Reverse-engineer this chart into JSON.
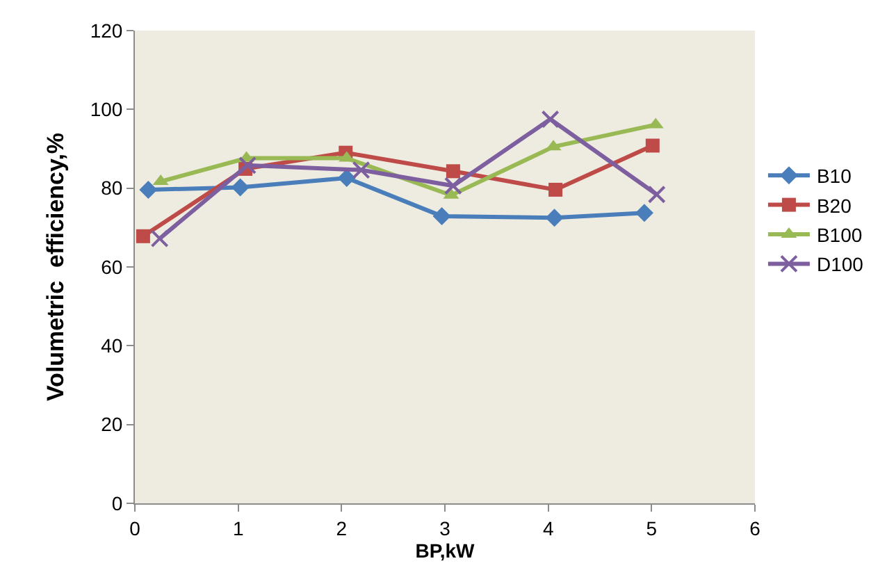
{
  "chart_data": {
    "type": "line",
    "xlabel": "BP,kW",
    "ylabel": "Volumetric  efficiency,%",
    "xlim": [
      0,
      6
    ],
    "xticks": [
      0,
      1,
      2,
      3,
      4,
      5,
      6
    ],
    "ylim": [
      0,
      120
    ],
    "yticks": [
      0,
      20,
      40,
      60,
      80,
      100,
      120
    ],
    "grid": false,
    "legend": "right",
    "line_style": "solid",
    "series": [
      {
        "name": "B10",
        "color": "#4a7ebb",
        "marker": "diamond",
        "x": [
          0.13,
          1.02,
          2.05,
          2.97,
          4.06,
          4.93
        ],
        "values": [
          79.6,
          80.2,
          82.6,
          72.9,
          72.5,
          73.7
        ]
      },
      {
        "name": "B20",
        "color": "#be4b48",
        "marker": "square",
        "x": [
          0.08,
          1.07,
          2.04,
          3.08,
          4.07,
          5.01
        ],
        "values": [
          67.8,
          84.9,
          89,
          84.3,
          79.6,
          90.8
        ]
      },
      {
        "name": "B100",
        "color": "#98b954",
        "marker": "triangle",
        "x": [
          0.25,
          1.08,
          2.05,
          3.06,
          4.05,
          5.04
        ],
        "values": [
          81.7,
          87.6,
          87.6,
          78.2,
          90.5,
          96.1
        ]
      },
      {
        "name": "D100",
        "color": "#7d5fa0",
        "marker": "cross",
        "x": [
          0.24,
          1.09,
          2.19,
          3.08,
          4.02,
          5.05
        ],
        "values": [
          67.2,
          85.8,
          84.6,
          80.6,
          97.5,
          78.4
        ]
      }
    ]
  }
}
